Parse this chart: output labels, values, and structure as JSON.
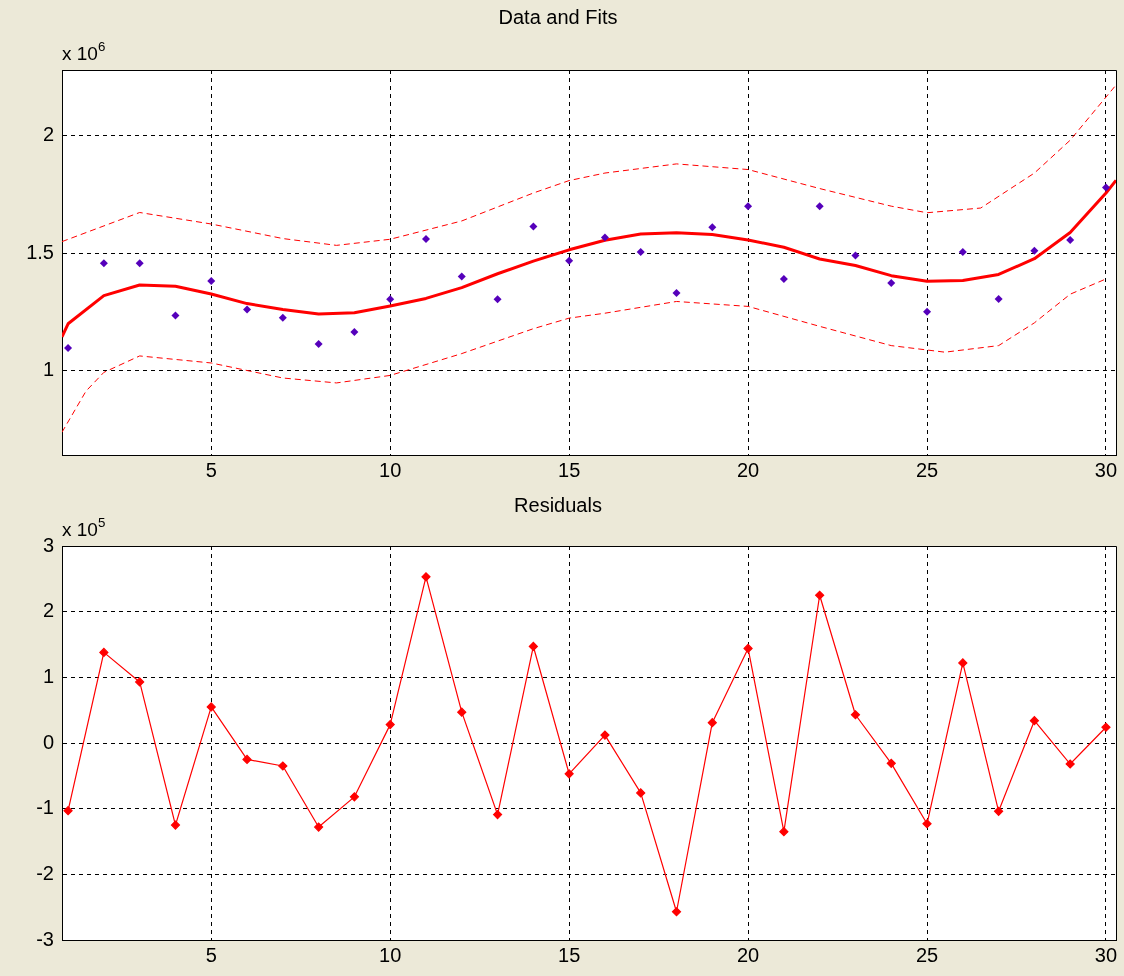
{
  "chart_data": [
    {
      "type": "scatter",
      "title": "Data and Fits",
      "annotations": [
        "x 10$^{6}$"
      ],
      "xlim": [
        0.83,
        30.28
      ],
      "xticks": [
        5,
        10,
        15,
        20,
        25,
        30
      ],
      "ylim": [
        0.64,
        2.28
      ],
      "yticks": [
        1,
        1.5,
        2
      ],
      "grid": true,
      "legend": false,
      "series": [
        {
          "marker": "diamond",
          "color": "#5500bb",
          "x": [
            1,
            2,
            3,
            4,
            5,
            6,
            7,
            8,
            9,
            10,
            11,
            12,
            13,
            14,
            15,
            16,
            17,
            18,
            19,
            20,
            21,
            22,
            23,
            24,
            25,
            26,
            27,
            28,
            29,
            30
          ],
          "values": [
            1.096,
            1.457,
            1.457,
            1.234,
            1.381,
            1.26,
            1.225,
            1.113,
            1.164,
            1.303,
            1.56,
            1.4,
            1.303,
            1.613,
            1.467,
            1.567,
            1.505,
            1.33,
            1.61,
            1.7,
            1.39,
            1.7,
            1.49,
            1.373,
            1.25,
            1.505,
            1.305,
            1.51,
            1.556,
            1.78
          ]
        },
        {
          "type": "line",
          "marker": "none",
          "line_style": "solid",
          "color": "#ff0000",
          "x": [
            0.83,
            1,
            2,
            3,
            4,
            5,
            6,
            7,
            8,
            9,
            10,
            11,
            12,
            13,
            14,
            15,
            16,
            17,
            18,
            19,
            20,
            21,
            22,
            23,
            24,
            25,
            26,
            27,
            28,
            29,
            30,
            30.28
          ],
          "values": [
            1.143,
            1.199,
            1.319,
            1.364,
            1.359,
            1.326,
            1.285,
            1.26,
            1.241,
            1.246,
            1.275,
            1.307,
            1.353,
            1.412,
            1.466,
            1.514,
            1.555,
            1.581,
            1.587,
            1.579,
            1.556,
            1.525,
            1.475,
            1.447,
            1.404,
            1.38,
            1.383,
            1.409,
            1.476,
            1.588,
            1.756,
            1.81
          ]
        },
        {
          "type": "line",
          "marker": "none",
          "line_style": "dashed",
          "color": "#ff0000",
          "x": [
            0.83,
            3,
            5,
            7,
            8.5,
            10,
            12,
            14,
            15,
            16,
            18,
            20,
            22,
            24,
            25,
            26.5,
            28,
            29,
            30.28
          ],
          "values": [
            1.549,
            1.673,
            1.624,
            1.562,
            1.533,
            1.559,
            1.637,
            1.756,
            1.809,
            1.841,
            1.88,
            1.856,
            1.775,
            1.7,
            1.672,
            1.692,
            1.841,
            1.981,
            2.216
          ]
        },
        {
          "type": "line",
          "marker": "none",
          "line_style": "dashed",
          "color": "#ff0000",
          "x": [
            0.83,
            1.5,
            2,
            3,
            5,
            7,
            8.5,
            10,
            12,
            14,
            15,
            16,
            18,
            20,
            22,
            24,
            25.5,
            27,
            28,
            29,
            30
          ],
          "values": [
            0.737,
            0.912,
            0.992,
            1.062,
            1.032,
            0.968,
            0.947,
            0.979,
            1.072,
            1.178,
            1.223,
            1.244,
            1.294,
            1.273,
            1.188,
            1.106,
            1.078,
            1.106,
            1.203,
            1.325,
            1.39
          ]
        }
      ]
    },
    {
      "type": "line",
      "title": "Residuals",
      "annotations": [
        "x 10$^{5}$"
      ],
      "xlim": [
        0.83,
        30.28
      ],
      "xticks": [
        5,
        10,
        15,
        20,
        25,
        30
      ],
      "ylim": [
        -3,
        3
      ],
      "yticks": [
        -3,
        -2,
        -1,
        0,
        1,
        2,
        3
      ],
      "grid": true,
      "legend": false,
      "marker": "diamond",
      "line_style": "solid",
      "color": "#ff0000",
      "x": [
        1,
        2,
        3,
        4,
        5,
        6,
        7,
        8,
        9,
        10,
        11,
        12,
        13,
        14,
        15,
        16,
        17,
        18,
        19,
        20,
        21,
        22,
        23,
        24,
        25,
        26,
        27,
        28,
        29,
        30
      ],
      "values": [
        -1.03,
        1.38,
        0.93,
        -1.25,
        0.55,
        -0.25,
        -0.35,
        -1.28,
        -0.82,
        0.28,
        2.53,
        0.47,
        -1.09,
        1.47,
        -0.47,
        0.12,
        -0.76,
        -2.57,
        0.31,
        1.44,
        -1.35,
        2.25,
        0.43,
        -0.31,
        -1.23,
        1.22,
        -1.04,
        0.34,
        -0.32,
        0.24
      ]
    }
  ]
}
